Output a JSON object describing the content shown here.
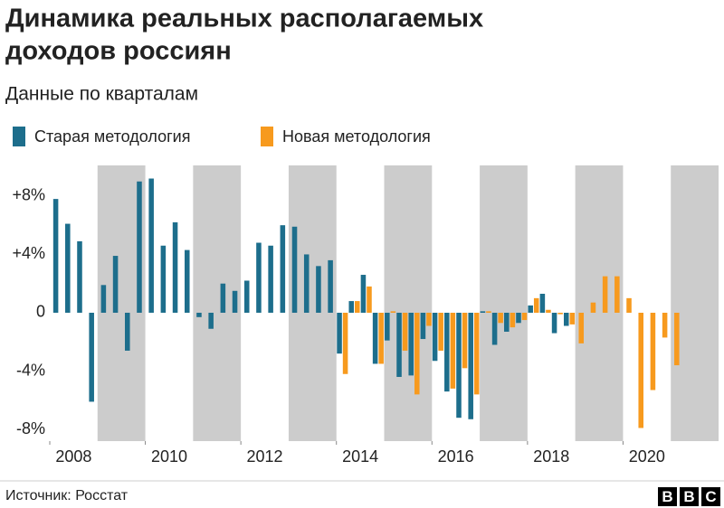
{
  "chart_data": {
    "type": "bar",
    "title": [
      "Динамика реальных располагаемых",
      "доходов россиян"
    ],
    "subtitle": "Данные по кварталам",
    "source": "Источник: Росстат",
    "logo": [
      "B",
      "B",
      "C"
    ],
    "x": [
      2008,
      2008.25,
      2008.5,
      2008.75,
      2009,
      2009.25,
      2009.5,
      2009.75,
      2010,
      2010.25,
      2010.5,
      2010.75,
      2011,
      2011.25,
      2011.5,
      2011.75,
      2012,
      2012.25,
      2012.5,
      2012.75,
      2013,
      2013.25,
      2013.5,
      2013.75,
      2014,
      2014.25,
      2014.5,
      2014.75,
      2015,
      2015.25,
      2015.5,
      2015.75,
      2016,
      2016.25,
      2016.5,
      2016.75,
      2017,
      2017.25,
      2017.5,
      2017.75,
      2018,
      2018.25,
      2018.5,
      2018.75,
      2019,
      2019.25,
      2019.5,
      2019.75,
      2020,
      2020.25,
      2020.5,
      2020.75,
      2021
    ],
    "xlim": [
      2008,
      2022
    ],
    "xticks": [
      2008,
      2010,
      2012,
      2014,
      2016,
      2018,
      2020
    ],
    "ylim": [
      -8.8,
      10.1
    ],
    "yticks": [
      {
        "value": -8,
        "label": "-8%"
      },
      {
        "value": -4,
        "label": "-4%"
      },
      0,
      {
        "value": 4,
        "label": "+4%"
      },
      {
        "value": 8,
        "label": "+8%"
      }
    ],
    "series": [
      {
        "name": "Старая методология",
        "color": "#1d6e8c",
        "values": [
          7.8,
          6.1,
          4.9,
          -6.1,
          1.9,
          3.9,
          -2.6,
          9.0,
          9.2,
          4.6,
          6.2,
          4.3,
          -0.3,
          -1.1,
          2.0,
          1.5,
          2.2,
          4.8,
          4.6,
          6.0,
          5.9,
          4.0,
          3.2,
          3.6,
          -2.8,
          0.8,
          2.6,
          -3.5,
          -1.9,
          -4.4,
          -4.3,
          -1.8,
          -3.3,
          -5.4,
          -7.2,
          -7.3,
          0.1,
          -2.2,
          -1.3,
          -0.7,
          0.5,
          1.3,
          -1.4,
          -0.9,
          null,
          null,
          null,
          null,
          null,
          null,
          null,
          null,
          null
        ]
      },
      {
        "name": "Новая методология",
        "color": "#f79a1e",
        "values": [
          null,
          null,
          null,
          null,
          null,
          null,
          null,
          null,
          null,
          null,
          null,
          null,
          null,
          null,
          null,
          null,
          null,
          null,
          null,
          null,
          null,
          null,
          null,
          null,
          -4.2,
          0.8,
          1.8,
          -3.5,
          0.1,
          -2.6,
          -5.6,
          -0.9,
          -2.6,
          -5.2,
          -3.8,
          -5.6,
          0.1,
          -0.7,
          -1.0,
          -0.5,
          1.0,
          0.2,
          -0.1,
          -0.8,
          -2.1,
          0.7,
          2.5,
          2.5,
          1.0,
          -7.9,
          -5.3,
          -1.7,
          -3.6
        ]
      }
    ]
  }
}
